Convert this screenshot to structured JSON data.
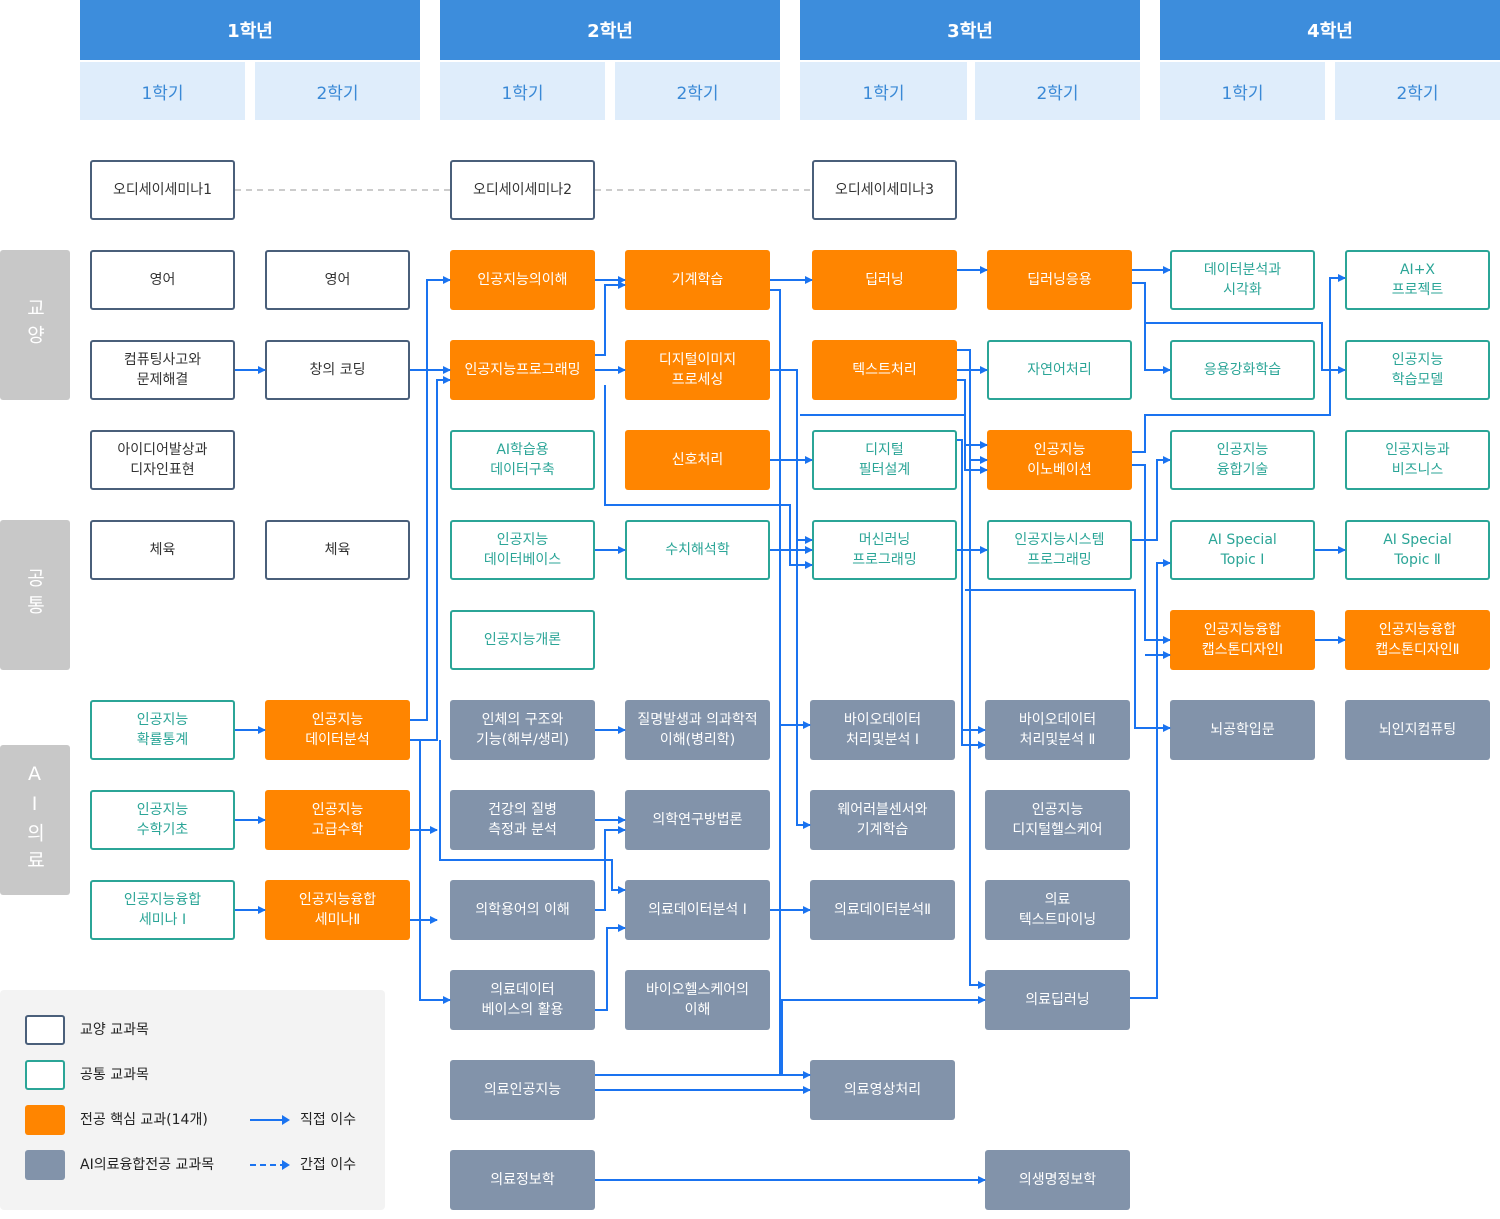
{
  "years": [
    {
      "label": "1학년",
      "semesters": [
        "1학기",
        "2학기"
      ]
    },
    {
      "label": "2학년",
      "semesters": [
        "1학기",
        "2학기"
      ]
    },
    {
      "label": "3학년",
      "semesters": [
        "1학기",
        "2학기"
      ]
    },
    {
      "label": "4학년",
      "semesters": [
        "1학기",
        "2학기"
      ]
    }
  ],
  "categories": {
    "liberal": "교양",
    "common": "공통",
    "ai_medical": "AI의료"
  },
  "courses": [
    {
      "id": "odyssey1",
      "label": "오디세이세미나1",
      "type": "gen"
    },
    {
      "id": "odyssey2",
      "label": "오디세이세미나2",
      "type": "gen"
    },
    {
      "id": "odyssey3",
      "label": "오디세이세미나3",
      "type": "gen"
    },
    {
      "id": "eng1",
      "label": "영어",
      "type": "gen"
    },
    {
      "id": "eng2",
      "label": "영어",
      "type": "gen"
    },
    {
      "id": "ct",
      "label": "컴퓨팅사고와\n문제해결",
      "type": "gen"
    },
    {
      "id": "coding",
      "label": "창의 코딩",
      "type": "gen"
    },
    {
      "id": "idea",
      "label": "아이디어발상과\n디자인표현",
      "type": "gen"
    },
    {
      "id": "pe1",
      "label": "체육",
      "type": "gen"
    },
    {
      "id": "pe2",
      "label": "체육",
      "type": "gen"
    },
    {
      "id": "ai_und",
      "label": "인공지능의이해",
      "type": "core"
    },
    {
      "id": "ml",
      "label": "기계학습",
      "type": "core"
    },
    {
      "id": "dl",
      "label": "딥러닝",
      "type": "core"
    },
    {
      "id": "dl_app",
      "label": "딥러닝응용",
      "type": "core"
    },
    {
      "id": "da_vis",
      "label": "데이터분석과\n시각화",
      "type": "com"
    },
    {
      "id": "aix",
      "label": "AI+X\n프로젝트",
      "type": "com"
    },
    {
      "id": "ai_prog",
      "label": "인공지능프로그래밍",
      "type": "core"
    },
    {
      "id": "dip",
      "label": "디지털이미지\n프로세싱",
      "type": "core"
    },
    {
      "id": "text",
      "label": "텍스트처리",
      "type": "core"
    },
    {
      "id": "nlp",
      "label": "자연어처리",
      "type": "com"
    },
    {
      "id": "rl",
      "label": "응용강화학습",
      "type": "com"
    },
    {
      "id": "ai_model",
      "label": "인공지능\n학습모델",
      "type": "com"
    },
    {
      "id": "ai_data",
      "label": "AI학습용\n데이터구축",
      "type": "com"
    },
    {
      "id": "signal",
      "label": "신호처리",
      "type": "core"
    },
    {
      "id": "filter",
      "label": "디지털\n필터설계",
      "type": "com"
    },
    {
      "id": "innov",
      "label": "인공지능\n이노베이션",
      "type": "core"
    },
    {
      "id": "fusion_tech",
      "label": "인공지능\n융합기술",
      "type": "com"
    },
    {
      "id": "biz",
      "label": "인공지능과\n비즈니스",
      "type": "com"
    },
    {
      "id": "ai_db",
      "label": "인공지능\n데이터베이스",
      "type": "com"
    },
    {
      "id": "numeric",
      "label": "수치해석학",
      "type": "com"
    },
    {
      "id": "ml_prog",
      "label": "머신러닝\n프로그래밍",
      "type": "com"
    },
    {
      "id": "sys_prog",
      "label": "인공지능시스템\n프로그래밍",
      "type": "com"
    },
    {
      "id": "topic1",
      "label": "AI Special\nTopic Ⅰ",
      "type": "com"
    },
    {
      "id": "topic2",
      "label": "AI Special\nTopic Ⅱ",
      "type": "com"
    },
    {
      "id": "intro",
      "label": "인공지능개론",
      "type": "com"
    },
    {
      "id": "cap1",
      "label": "인공지능융합\n캡스톤디자인Ⅰ",
      "type": "core"
    },
    {
      "id": "cap2",
      "label": "인공지능융합\n캡스톤디자인Ⅱ",
      "type": "core"
    },
    {
      "id": "prob",
      "label": "인공지능\n확률통계",
      "type": "com"
    },
    {
      "id": "data_an",
      "label": "인공지능\n데이터분석",
      "type": "core"
    },
    {
      "id": "anat",
      "label": "인체의 구조와\n기능(해부/생리)",
      "type": "ai"
    },
    {
      "id": "patho",
      "label": "질명발생과 의과학적\n이해(병리학)",
      "type": "ai"
    },
    {
      "id": "bio1",
      "label": "바이오데이터\n처리및분석 Ⅰ",
      "type": "ai"
    },
    {
      "id": "bio2",
      "label": "바이오데이터\n처리및분석 Ⅱ",
      "type": "ai"
    },
    {
      "id": "brain",
      "label": "뇌공학입문",
      "type": "ai"
    },
    {
      "id": "cog",
      "label": "뇌인지컴퓨팅",
      "type": "ai"
    },
    {
      "id": "math",
      "label": "인공지능\n수학기초",
      "type": "com"
    },
    {
      "id": "adv_math",
      "label": "인공지능\n고급수학",
      "type": "core"
    },
    {
      "id": "health",
      "label": "건강의 질병\n측정과 분석",
      "type": "ai"
    },
    {
      "id": "method",
      "label": "의학연구방법론",
      "type": "ai"
    },
    {
      "id": "wear",
      "label": "웨어러블센서와\n기계학습",
      "type": "ai"
    },
    {
      "id": "dhc",
      "label": "인공지능\n디지털헬스케어",
      "type": "ai"
    },
    {
      "id": "sem1",
      "label": "인공지능융합\n세미나 Ⅰ",
      "type": "com"
    },
    {
      "id": "sem2",
      "label": "인공지능융합\n세미나Ⅱ",
      "type": "core"
    },
    {
      "id": "term",
      "label": "의학용어의 이해",
      "type": "ai"
    },
    {
      "id": "mda1",
      "label": "의료데이터분석 Ⅰ",
      "type": "ai"
    },
    {
      "id": "mda2",
      "label": "의료데이터분석Ⅱ",
      "type": "ai"
    },
    {
      "id": "tm",
      "label": "의료\n텍스트마이닝",
      "type": "ai"
    },
    {
      "id": "mdb",
      "label": "의료데이터\n베이스의 활용",
      "type": "ai"
    },
    {
      "id": "biohc",
      "label": "바이오헬스케어의\n이해",
      "type": "ai"
    },
    {
      "id": "mdl",
      "label": "의료딥러닝",
      "type": "ai"
    },
    {
      "id": "mai",
      "label": "의료인공지능",
      "type": "ai"
    },
    {
      "id": "mimg",
      "label": "의료영상처리",
      "type": "ai"
    },
    {
      "id": "minfo",
      "label": "의료정보학",
      "type": "ai"
    },
    {
      "id": "bioinfo",
      "label": "의생명정보학",
      "type": "ai"
    }
  ],
  "legend": {
    "liberal": "교양 교과목",
    "common": "공통 교과목",
    "core": "전공 핵심 교과(14개)",
    "ai": "AI의료융합전공 교과목",
    "direct": "직접 이수",
    "indirect": "간접 이수"
  },
  "colors": {
    "header": "#3d8ddc",
    "semester": "#dfedfb",
    "core": "#ff8500",
    "common": "#2ba597",
    "liberal": "#4a5f7a",
    "ai": "#8293aa",
    "arrow": "#1a73f0"
  }
}
